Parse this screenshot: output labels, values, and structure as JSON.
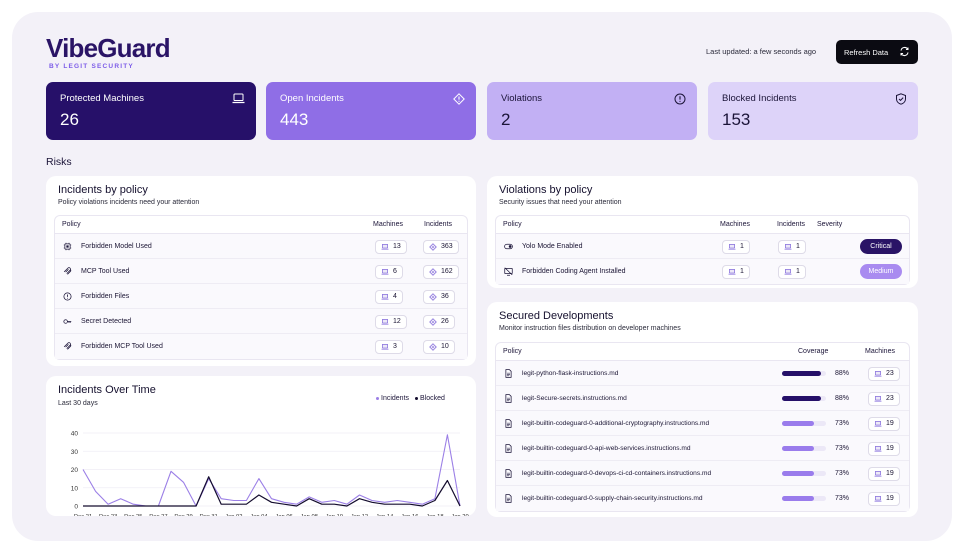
{
  "brand": {
    "name": "VibeGuard",
    "sub": "BY LEGIT SECURITY"
  },
  "header": {
    "last_updated": "Last updated: a few seconds ago",
    "refresh_label": "Refresh Data"
  },
  "stats": [
    {
      "label": "Protected Machines",
      "value": "26",
      "icon": "laptop-icon"
    },
    {
      "label": "Open Incidents",
      "value": "443",
      "icon": "alert-diamond-icon"
    },
    {
      "label": "Violations",
      "value": "2",
      "icon": "alert-circle-icon"
    },
    {
      "label": "Blocked Incidents",
      "value": "153",
      "icon": "shield-check-icon"
    }
  ],
  "risks_label": "Risks",
  "incidents_by_policy": {
    "title": "Incidents by policy",
    "subtitle": "Policy violations incidents need your attention",
    "headers": {
      "policy": "Policy",
      "machines": "Machines",
      "incidents": "Incidents"
    },
    "rows": [
      {
        "policy": "Forbidden Model Used",
        "machines": "13",
        "incidents": "363",
        "icon": "chip-icon"
      },
      {
        "policy": "MCP Tool Used",
        "machines": "6",
        "incidents": "162",
        "icon": "mcp-icon"
      },
      {
        "policy": "Forbidden Files",
        "machines": "4",
        "incidents": "36",
        "icon": "alert-circle-icon"
      },
      {
        "policy": "Secret Detected",
        "machines": "12",
        "incidents": "26",
        "icon": "key-icon"
      },
      {
        "policy": "Forbidden MCP Tool Used",
        "machines": "3",
        "incidents": "10",
        "icon": "mcp-icon"
      }
    ]
  },
  "violations_by_policy": {
    "title": "Violations by policy",
    "subtitle": "Security issues that need your attention",
    "headers": {
      "policy": "Policy",
      "machines": "Machines",
      "incidents": "Incidents",
      "severity": "Severity"
    },
    "rows": [
      {
        "policy": "Yolo Mode Enabled",
        "machines": "1",
        "incidents": "1",
        "severity": "Critical",
        "sev_bg": "#2a1466",
        "sev_fg": "#ffffff",
        "icon": "toggle-icon"
      },
      {
        "policy": "Forbidden Coding Agent Installed",
        "machines": "1",
        "incidents": "1",
        "severity": "Medium",
        "sev_bg": "#a98bf0",
        "sev_fg": "#ffffff",
        "icon": "monitor-off-icon"
      }
    ]
  },
  "secured_developments": {
    "title": "Secured Developments",
    "subtitle": "Monitor instruction files distribution on developer machines",
    "headers": {
      "policy": "Policy",
      "coverage": "Coverage",
      "machines": "Machines"
    },
    "rows": [
      {
        "policy": "legit-python-flask-instructions.md",
        "coverage": "88%",
        "pct": 0.88,
        "machines": "23",
        "color": "#261069"
      },
      {
        "policy": "legit-Secure-secrets.instructions.md",
        "coverage": "88%",
        "pct": 0.88,
        "machines": "23",
        "color": "#261069"
      },
      {
        "policy": "legit-builtin-codeguard-0-additional-cryptography.instructions.md",
        "coverage": "73%",
        "pct": 0.73,
        "machines": "19",
        "color": "#9a7cec"
      },
      {
        "policy": "legit-builtin-codeguard-0-api-web-services.instructions.md",
        "coverage": "73%",
        "pct": 0.73,
        "machines": "19",
        "color": "#9a7cec"
      },
      {
        "policy": "legit-builtin-codeguard-0-devops-ci-cd-containers.instructions.md",
        "coverage": "73%",
        "pct": 0.73,
        "machines": "19",
        "color": "#9a7cec"
      },
      {
        "policy": "legit-builtin-codeguard-0-supply-chain-security.instructions.md",
        "coverage": "73%",
        "pct": 0.73,
        "machines": "19",
        "color": "#9a7cec"
      }
    ]
  },
  "incidents_over_time": {
    "title": "Incidents Over Time",
    "subtitle": "Last 30 days",
    "chart_data": {
      "type": "line",
      "title": "Incidents Over Time",
      "x": [
        "Dec 21",
        "Dec 22",
        "Dec 23",
        "Dec 24",
        "Dec 25",
        "Dec 26",
        "Dec 27",
        "Dec 28",
        "Dec 29",
        "Dec 30",
        "Dec 31",
        "Jan 01",
        "Jan 02",
        "Jan 03",
        "Jan 04",
        "Jan 05",
        "Jan 06",
        "Jan 07",
        "Jan 08",
        "Jan 09",
        "Jan 10",
        "Jan 11",
        "Jan 12",
        "Jan 13",
        "Jan 14",
        "Jan 15",
        "Jan 16",
        "Jan 17",
        "Jan 18",
        "Jan 19",
        "Jan 20"
      ],
      "x_tick_labels": [
        "Dec 21",
        "Dec 23",
        "Dec 25",
        "Dec 27",
        "Dec 29",
        "Dec 31",
        "Jan 02",
        "Jan 04",
        "Jan 06",
        "Jan 08",
        "Jan 10",
        "Jan 12",
        "Jan 14",
        "Jan 16",
        "Jan 18",
        "Jan 20"
      ],
      "series": [
        {
          "name": "Incidents",
          "color": "#9b7fe6",
          "values": [
            20,
            8,
            1,
            4,
            1,
            0,
            0,
            19,
            13,
            0,
            15,
            4,
            3,
            3,
            15,
            4,
            2,
            1,
            5,
            2,
            3,
            1,
            6,
            3,
            2,
            3,
            2,
            1,
            4,
            39,
            0
          ]
        },
        {
          "name": "Blocked",
          "color": "#140c2e",
          "values": [
            0,
            0,
            0,
            0,
            0,
            0,
            0,
            0,
            0,
            0,
            16,
            1,
            1,
            1,
            6,
            2,
            1,
            0,
            4,
            1,
            1,
            0,
            4,
            2,
            1,
            1,
            1,
            0,
            3,
            14,
            0
          ]
        }
      ],
      "ylim": [
        0,
        40
      ],
      "y_ticks": [
        0,
        10,
        20,
        30,
        40
      ],
      "legend": "top-right",
      "grid": true
    }
  }
}
